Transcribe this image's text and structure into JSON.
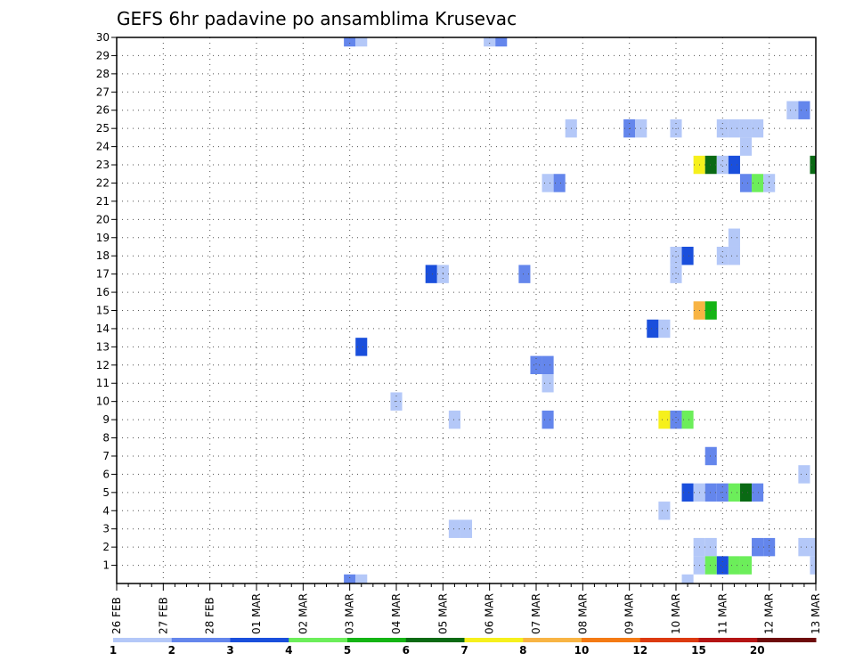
{
  "chart_data": {
    "type": "heatmap",
    "title": "GEFS 6hr padavine po ansamblima Krusevac",
    "xlabel": "",
    "ylabel": "",
    "x_tick_labels": [
      "26 FEB",
      "27 FEB",
      "28 FEB",
      "01 MAR",
      "02 MAR",
      "03 MAR",
      "04 MAR",
      "05 MAR",
      "06 MAR",
      "07 MAR",
      "08 MAR",
      "09 MAR",
      "10 MAR",
      "11 MAR",
      "12 MAR",
      "13 MAR"
    ],
    "x_range_steps": [
      0,
      60
    ],
    "y_tick_labels": [
      "1",
      "2",
      "3",
      "4",
      "5",
      "6",
      "7",
      "8",
      "9",
      "10",
      "11",
      "12",
      "13",
      "14",
      "15",
      "16",
      "17",
      "18",
      "19",
      "20",
      "21",
      "22",
      "23",
      "24",
      "25",
      "26",
      "27",
      "28",
      "29",
      "30"
    ],
    "y_range": [
      0,
      30
    ],
    "grid": true,
    "legend": {
      "placement": "bottom",
      "labels": [
        "1",
        "2",
        "3",
        "4",
        "5",
        "6",
        "7",
        "8",
        "10",
        "12",
        "15",
        "20"
      ],
      "colors": [
        "#b4c8f8",
        "#6486ec",
        "#1a4fdc",
        "#6cee5a",
        "#14b414",
        "#0a6a14",
        "#f6f01c",
        "#f8b444",
        "#f47a14",
        "#dc3a10",
        "#b41414",
        "#6e0a0a"
      ]
    },
    "cells": [
      {
        "member": 30,
        "step": 20,
        "color": "#6486ec"
      },
      {
        "member": 30,
        "step": 21,
        "color": "#b4c8f8"
      },
      {
        "member": 30,
        "step": 32,
        "color": "#b4c8f8"
      },
      {
        "member": 30,
        "step": 33,
        "color": "#6486ec"
      },
      {
        "member": 26,
        "step": 58,
        "color": "#b4c8f8"
      },
      {
        "member": 26,
        "step": 59,
        "color": "#6486ec"
      },
      {
        "member": 25,
        "step": 39,
        "color": "#b4c8f8"
      },
      {
        "member": 25,
        "step": 44,
        "color": "#6486ec"
      },
      {
        "member": 25,
        "step": 45,
        "color": "#b4c8f8"
      },
      {
        "member": 25,
        "step": 48,
        "color": "#b4c8f8"
      },
      {
        "member": 25,
        "step": 52,
        "color": "#b4c8f8"
      },
      {
        "member": 25,
        "step": 53,
        "color": "#b4c8f8"
      },
      {
        "member": 25,
        "step": 54,
        "color": "#b4c8f8"
      },
      {
        "member": 25,
        "step": 55,
        "color": "#b4c8f8"
      },
      {
        "member": 24,
        "step": 54,
        "color": "#b4c8f8"
      },
      {
        "member": 23,
        "step": 50,
        "color": "#f6f01c"
      },
      {
        "member": 23,
        "step": 51,
        "color": "#0a6a14"
      },
      {
        "member": 23,
        "step": 52,
        "color": "#b4c8f8"
      },
      {
        "member": 23,
        "step": 53,
        "color": "#1a4fdc"
      },
      {
        "member": 23,
        "step": 60,
        "color": "#0a6a14"
      },
      {
        "member": 22,
        "step": 37,
        "color": "#b4c8f8"
      },
      {
        "member": 22,
        "step": 38,
        "color": "#6486ec"
      },
      {
        "member": 22,
        "step": 54,
        "color": "#6486ec"
      },
      {
        "member": 22,
        "step": 55,
        "color": "#6cee5a"
      },
      {
        "member": 22,
        "step": 56,
        "color": "#b4c8f8"
      },
      {
        "member": 19,
        "step": 53,
        "color": "#b4c8f8"
      },
      {
        "member": 18,
        "step": 48,
        "color": "#b4c8f8"
      },
      {
        "member": 18,
        "step": 49,
        "color": "#1a4fdc"
      },
      {
        "member": 18,
        "step": 52,
        "color": "#b4c8f8"
      },
      {
        "member": 18,
        "step": 53,
        "color": "#b4c8f8"
      },
      {
        "member": 17,
        "step": 27,
        "color": "#1a4fdc"
      },
      {
        "member": 17,
        "step": 28,
        "color": "#b4c8f8"
      },
      {
        "member": 17,
        "step": 35,
        "color": "#6486ec"
      },
      {
        "member": 17,
        "step": 48,
        "color": "#b4c8f8"
      },
      {
        "member": 15,
        "step": 50,
        "color": "#f8b444"
      },
      {
        "member": 15,
        "step": 51,
        "color": "#14b414"
      },
      {
        "member": 14,
        "step": 46,
        "color": "#1a4fdc"
      },
      {
        "member": 14,
        "step": 47,
        "color": "#b4c8f8"
      },
      {
        "member": 13,
        "step": 21,
        "color": "#1a4fdc"
      },
      {
        "member": 12,
        "step": 36,
        "color": "#6486ec"
      },
      {
        "member": 12,
        "step": 37,
        "color": "#6486ec"
      },
      {
        "member": 11,
        "step": 37,
        "color": "#b4c8f8"
      },
      {
        "member": 10,
        "step": 24,
        "color": "#b4c8f8"
      },
      {
        "member": 9,
        "step": 29,
        "color": "#b4c8f8"
      },
      {
        "member": 9,
        "step": 37,
        "color": "#6486ec"
      },
      {
        "member": 9,
        "step": 47,
        "color": "#f6f01c"
      },
      {
        "member": 9,
        "step": 48,
        "color": "#6486ec"
      },
      {
        "member": 9,
        "step": 49,
        "color": "#6cee5a"
      },
      {
        "member": 7,
        "step": 51,
        "color": "#6486ec"
      },
      {
        "member": 6,
        "step": 59,
        "color": "#b4c8f8"
      },
      {
        "member": 5,
        "step": 49,
        "color": "#1a4fdc"
      },
      {
        "member": 5,
        "step": 50,
        "color": "#b4c8f8"
      },
      {
        "member": 5,
        "step": 51,
        "color": "#6486ec"
      },
      {
        "member": 5,
        "step": 52,
        "color": "#6486ec"
      },
      {
        "member": 5,
        "step": 53,
        "color": "#6cee5a"
      },
      {
        "member": 5,
        "step": 54,
        "color": "#0a6a14"
      },
      {
        "member": 5,
        "step": 55,
        "color": "#6486ec"
      },
      {
        "member": 4,
        "step": 47,
        "color": "#b4c8f8"
      },
      {
        "member": 3,
        "step": 29,
        "color": "#b4c8f8"
      },
      {
        "member": 3,
        "step": 30,
        "color": "#b4c8f8"
      },
      {
        "member": 2,
        "step": 50,
        "color": "#b4c8f8"
      },
      {
        "member": 2,
        "step": 51,
        "color": "#b4c8f8"
      },
      {
        "member": 2,
        "step": 55,
        "color": "#6486ec"
      },
      {
        "member": 2,
        "step": 56,
        "color": "#6486ec"
      },
      {
        "member": 2,
        "step": 59,
        "color": "#b4c8f8"
      },
      {
        "member": 2,
        "step": 60,
        "color": "#b4c8f8"
      },
      {
        "member": 1,
        "step": 50,
        "color": "#b4c8f8"
      },
      {
        "member": 1,
        "step": 51,
        "color": "#6cee5a"
      },
      {
        "member": 1,
        "step": 52,
        "color": "#1a4fdc"
      },
      {
        "member": 1,
        "step": 53,
        "color": "#6cee5a"
      },
      {
        "member": 1,
        "step": 54,
        "color": "#6cee5a"
      },
      {
        "member": 1,
        "step": 60,
        "color": "#b4c8f8"
      },
      {
        "member": 0,
        "step": 20,
        "color": "#6486ec"
      },
      {
        "member": 0,
        "step": 21,
        "color": "#b4c8f8"
      },
      {
        "member": 0,
        "step": 49,
        "color": "#b4c8f8"
      }
    ]
  }
}
